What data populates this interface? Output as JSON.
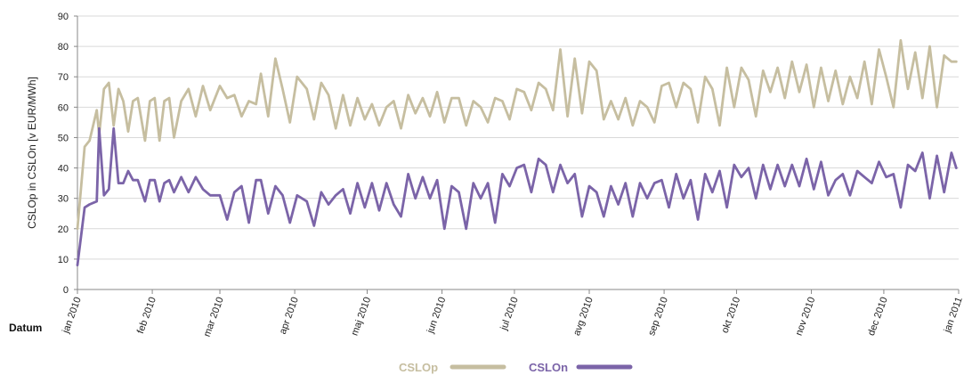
{
  "chart_data": {
    "type": "line",
    "title": "",
    "xlabel": "Datum",
    "ylabel": "CSLOp in CSLOn [v EUR/MWh]",
    "ylim": [
      0,
      90
    ],
    "yticks": [
      0,
      10,
      20,
      30,
      40,
      50,
      60,
      70,
      80,
      90
    ],
    "ytick_labels": [
      "0",
      "10",
      "20",
      "30",
      "40",
      "50",
      "60",
      "70",
      "80",
      "90"
    ],
    "xlim": [
      "2010-01-01",
      "2011-01-01"
    ],
    "xtick_labels": [
      "jan 2010",
      "feb 2010",
      "mar 2010",
      "apr 2010",
      "maj 2010",
      "jun 2010",
      "jul 2010",
      "avg 2010",
      "sep 2010",
      "okt 2010",
      "nov 2010",
      "dec 2010",
      "jan 2011"
    ],
    "xtick_dates": [
      "2010-01-01",
      "2010-02-01",
      "2010-03-01",
      "2010-04-01",
      "2010-05-01",
      "2010-06-01",
      "2010-07-01",
      "2010-08-01",
      "2010-09-01",
      "2010-10-01",
      "2010-11-01",
      "2010-12-01",
      "2011-01-01"
    ],
    "grid": "horizontal",
    "legend_position": "bottom-center",
    "series": [
      {
        "name": "CSLOp",
        "color": "#c6bea0",
        "x": [
          "2010-01-01",
          "2010-01-04",
          "2010-01-06",
          "2010-01-09",
          "2010-01-10",
          "2010-01-12",
          "2010-01-14",
          "2010-01-16",
          "2010-01-18",
          "2010-01-20",
          "2010-01-22",
          "2010-01-24",
          "2010-01-26",
          "2010-01-29",
          "2010-01-31",
          "2010-02-02",
          "2010-02-04",
          "2010-02-06",
          "2010-02-08",
          "2010-02-10",
          "2010-02-13",
          "2010-02-16",
          "2010-02-19",
          "2010-02-22",
          "2010-02-25",
          "2010-03-01",
          "2010-03-04",
          "2010-03-07",
          "2010-03-10",
          "2010-03-13",
          "2010-03-16",
          "2010-03-18",
          "2010-03-21",
          "2010-03-24",
          "2010-03-27",
          "2010-03-30",
          "2010-04-02",
          "2010-04-06",
          "2010-04-09",
          "2010-04-12",
          "2010-04-15",
          "2010-04-18",
          "2010-04-21",
          "2010-04-24",
          "2010-04-27",
          "2010-04-30",
          "2010-05-03",
          "2010-05-06",
          "2010-05-09",
          "2010-05-12",
          "2010-05-15",
          "2010-05-18",
          "2010-05-21",
          "2010-05-24",
          "2010-05-27",
          "2010-05-30",
          "2010-06-02",
          "2010-06-05",
          "2010-06-08",
          "2010-06-11",
          "2010-06-14",
          "2010-06-17",
          "2010-06-20",
          "2010-06-23",
          "2010-06-26",
          "2010-06-29",
          "2010-07-02",
          "2010-07-05",
          "2010-07-08",
          "2010-07-11",
          "2010-07-14",
          "2010-07-17",
          "2010-07-20",
          "2010-07-23",
          "2010-07-26",
          "2010-07-29",
          "2010-08-01",
          "2010-08-04",
          "2010-08-07",
          "2010-08-10",
          "2010-08-13",
          "2010-08-16",
          "2010-08-19",
          "2010-08-22",
          "2010-08-25",
          "2010-08-28",
          "2010-08-31",
          "2010-09-03",
          "2010-09-06",
          "2010-09-09",
          "2010-09-12",
          "2010-09-15",
          "2010-09-18",
          "2010-09-21",
          "2010-09-24",
          "2010-09-27",
          "2010-09-30",
          "2010-10-03",
          "2010-10-06",
          "2010-10-09",
          "2010-10-12",
          "2010-10-15",
          "2010-10-18",
          "2010-10-21",
          "2010-10-24",
          "2010-10-27",
          "2010-10-30",
          "2010-11-02",
          "2010-11-05",
          "2010-11-08",
          "2010-11-11",
          "2010-11-14",
          "2010-11-17",
          "2010-11-20",
          "2010-11-23",
          "2010-11-26",
          "2010-11-29",
          "2010-12-02",
          "2010-12-05",
          "2010-12-08",
          "2010-12-11",
          "2010-12-14",
          "2010-12-17",
          "2010-12-20",
          "2010-12-23",
          "2010-12-26",
          "2010-12-29",
          "2010-12-31"
        ],
        "values": [
          20,
          47,
          49,
          59,
          51,
          66,
          68,
          54,
          66,
          62,
          52,
          62,
          63,
          49,
          62,
          63,
          49,
          62,
          63,
          50,
          62,
          66,
          57,
          67,
          59,
          67,
          63,
          64,
          57,
          62,
          61,
          71,
          57,
          76,
          66,
          55,
          70,
          66,
          56,
          68,
          64,
          53,
          64,
          54,
          63,
          56,
          61,
          54,
          60,
          62,
          53,
          64,
          58,
          63,
          57,
          65,
          55,
          63,
          63,
          54,
          62,
          60,
          55,
          63,
          62,
          56,
          66,
          65,
          59,
          68,
          66,
          59,
          79,
          57,
          76,
          58,
          75,
          72,
          56,
          62,
          56,
          63,
          54,
          62,
          60,
          55,
          67,
          68,
          60,
          68,
          66,
          55,
          70,
          66,
          54,
          73,
          60,
          73,
          69,
          57,
          72,
          65,
          73,
          63,
          75,
          65,
          74,
          60,
          73,
          62,
          72,
          61,
          70,
          63,
          75,
          61,
          79,
          70,
          60,
          82,
          66,
          78,
          63,
          80,
          60,
          77,
          75,
          75
        ]
      },
      {
        "name": "CSLOn",
        "color": "#7b64a8",
        "x": [
          "2010-01-01",
          "2010-01-04",
          "2010-01-06",
          "2010-01-09",
          "2010-01-10",
          "2010-01-12",
          "2010-01-14",
          "2010-01-16",
          "2010-01-18",
          "2010-01-20",
          "2010-01-22",
          "2010-01-24",
          "2010-01-26",
          "2010-01-29",
          "2010-01-31",
          "2010-02-02",
          "2010-02-04",
          "2010-02-06",
          "2010-02-08",
          "2010-02-10",
          "2010-02-13",
          "2010-02-16",
          "2010-02-19",
          "2010-02-22",
          "2010-02-25",
          "2010-03-01",
          "2010-03-04",
          "2010-03-07",
          "2010-03-10",
          "2010-03-13",
          "2010-03-16",
          "2010-03-18",
          "2010-03-21",
          "2010-03-24",
          "2010-03-27",
          "2010-03-30",
          "2010-04-02",
          "2010-04-06",
          "2010-04-09",
          "2010-04-12",
          "2010-04-15",
          "2010-04-18",
          "2010-04-21",
          "2010-04-24",
          "2010-04-27",
          "2010-04-30",
          "2010-05-03",
          "2010-05-06",
          "2010-05-09",
          "2010-05-12",
          "2010-05-15",
          "2010-05-18",
          "2010-05-21",
          "2010-05-24",
          "2010-05-27",
          "2010-05-30",
          "2010-06-02",
          "2010-06-05",
          "2010-06-08",
          "2010-06-11",
          "2010-06-14",
          "2010-06-17",
          "2010-06-20",
          "2010-06-23",
          "2010-06-26",
          "2010-06-29",
          "2010-07-02",
          "2010-07-05",
          "2010-07-08",
          "2010-07-11",
          "2010-07-14",
          "2010-07-17",
          "2010-07-20",
          "2010-07-23",
          "2010-07-26",
          "2010-07-29",
          "2010-08-01",
          "2010-08-04",
          "2010-08-07",
          "2010-08-10",
          "2010-08-13",
          "2010-08-16",
          "2010-08-19",
          "2010-08-22",
          "2010-08-25",
          "2010-08-28",
          "2010-08-31",
          "2010-09-03",
          "2010-09-06",
          "2010-09-09",
          "2010-09-12",
          "2010-09-15",
          "2010-09-18",
          "2010-09-21",
          "2010-09-24",
          "2010-09-27",
          "2010-09-30",
          "2010-10-03",
          "2010-10-06",
          "2010-10-09",
          "2010-10-12",
          "2010-10-15",
          "2010-10-18",
          "2010-10-21",
          "2010-10-24",
          "2010-10-27",
          "2010-10-30",
          "2010-11-02",
          "2010-11-05",
          "2010-11-08",
          "2010-11-11",
          "2010-11-14",
          "2010-11-17",
          "2010-11-20",
          "2010-11-23",
          "2010-11-26",
          "2010-11-29",
          "2010-12-02",
          "2010-12-05",
          "2010-12-08",
          "2010-12-11",
          "2010-12-14",
          "2010-12-17",
          "2010-12-20",
          "2010-12-23",
          "2010-12-26",
          "2010-12-29",
          "2010-12-31"
        ],
        "values": [
          8,
          27,
          28,
          29,
          53,
          31,
          33,
          53,
          35,
          35,
          39,
          36,
          36,
          29,
          36,
          36,
          29,
          35,
          36,
          32,
          37,
          32,
          37,
          33,
          31,
          31,
          23,
          32,
          34,
          22,
          36,
          36,
          25,
          34,
          31,
          22,
          31,
          29,
          21,
          32,
          28,
          31,
          33,
          25,
          35,
          27,
          35,
          26,
          35,
          28,
          24,
          38,
          30,
          37,
          30,
          36,
          20,
          34,
          32,
          20,
          35,
          30,
          35,
          22,
          38,
          34,
          40,
          41,
          32,
          43,
          41,
          32,
          41,
          35,
          38,
          24,
          34,
          32,
          24,
          34,
          28,
          35,
          24,
          35,
          30,
          35,
          36,
          27,
          38,
          30,
          36,
          23,
          38,
          32,
          39,
          27,
          41,
          37,
          40,
          30,
          41,
          33,
          41,
          34,
          41,
          34,
          43,
          33,
          42,
          31,
          36,
          38,
          31,
          39,
          37,
          35,
          42,
          37,
          38,
          27,
          41,
          39,
          45,
          30,
          44,
          32,
          45,
          40
        ]
      }
    ]
  }
}
